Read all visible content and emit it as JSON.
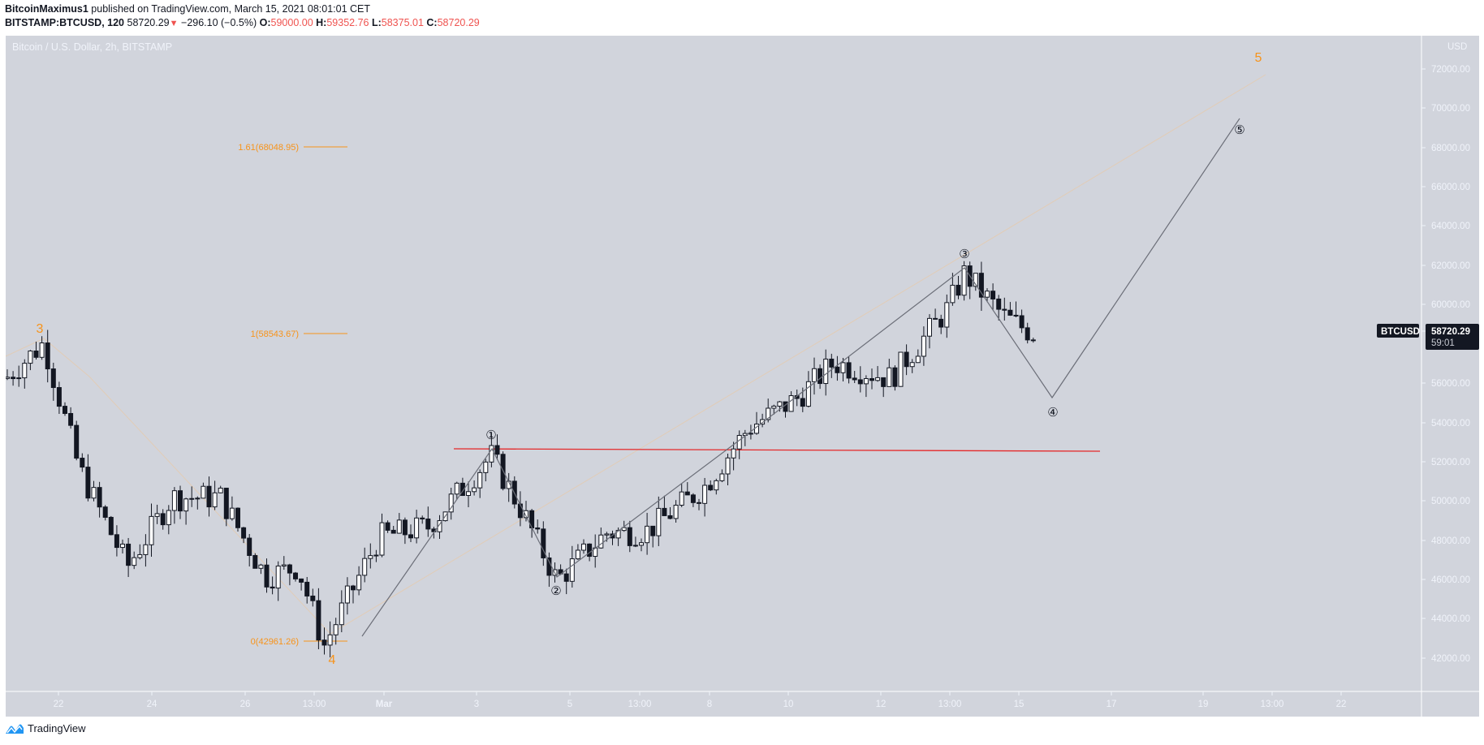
{
  "header": {
    "author": "BitcoinMaximus1",
    "published_text": "published on TradingView.com, March 15, 2021 08:01:01 CET",
    "symbol_interval": "BITSTAMP:BTCUSD, 120",
    "last_price": "58720.29",
    "change_direction": "down",
    "change_icon": "down-triangle-icon",
    "change": "−296.10 (−0.5%)",
    "open_label": "O:",
    "open": "59000.00",
    "high_label": "H:",
    "high": "59352.76",
    "low_label": "L:",
    "low": "58375.01",
    "close_label": "C:",
    "close": "58720.29"
  },
  "chart_title": "Bitcoin / U.S. Dollar, 2h, BITSTAMP",
  "price_axis": {
    "currency": "USD",
    "ticks": [
      "72000.00",
      "70000.00",
      "68000.00",
      "66000.00",
      "64000.00",
      "62000.00",
      "60000.00",
      "58000.00",
      "56000.00",
      "54000.00",
      "52000.00",
      "50000.00",
      "48000.00",
      "46000.00",
      "44000.00",
      "42000.00"
    ],
    "symbol_tag": "BTCUSD",
    "price_tag": "58720.29",
    "countdown": "59:01"
  },
  "time_axis": {
    "ticks": [
      "22",
      "24",
      "26",
      "13:00",
      "Mar",
      "3",
      "5",
      "13:00",
      "8",
      "10",
      "12",
      "13:00",
      "15",
      "17",
      "19",
      "13:00",
      "22"
    ]
  },
  "fib_levels": [
    {
      "label": "1.61(68048.95)",
      "value": 68048.95
    },
    {
      "label": "1(58543.67)",
      "value": 58543.67
    },
    {
      "label": "0(42961.26)",
      "value": 42961.26
    }
  ],
  "wave_labels": {
    "major": [
      "3",
      "4",
      "5"
    ],
    "minor": [
      "①",
      "②",
      "③",
      "④",
      "⑤"
    ]
  },
  "colors": {
    "background": "#d1d4dc",
    "axis_text": "#f0f3fa",
    "fib": "#f7931a",
    "resistance": "#e5292a",
    "path": "#6b6e78",
    "candle_up": "#ffffff",
    "candle_down": "#131722",
    "tag_bg": "#131722"
  },
  "footer": {
    "brand": "TradingView",
    "logo_icon": "tradingview-logo-icon"
  },
  "chart_data": {
    "type": "candlestick",
    "title": "Bitcoin / U.S. Dollar, 2h, BITSTAMP",
    "xlabel": "",
    "ylabel": "USD",
    "ylim": [
      40700,
      73800
    ],
    "x_ticks": [
      "22",
      "24",
      "26",
      "13:00",
      "Mar",
      "3",
      "5",
      "13:00",
      "8",
      "10",
      "12",
      "13:00",
      "15",
      "17",
      "19",
      "13:00",
      "22"
    ],
    "approx_close_path": [
      {
        "x": "Feb 21",
        "price": 56500
      },
      {
        "x": "Feb 21 (peak, wave 3)",
        "price": 58300
      },
      {
        "x": "Feb 22",
        "price": 52000
      },
      {
        "x": "Feb 23",
        "price": 47000
      },
      {
        "x": "Feb 24",
        "price": 50500
      },
      {
        "x": "Feb 25",
        "price": 50500
      },
      {
        "x": "Feb 26",
        "price": 46500
      },
      {
        "x": "Feb 27",
        "price": 47000
      },
      {
        "x": "Feb 28 (low, wave 4)",
        "price": 43000
      },
      {
        "x": "Mar 1",
        "price": 48500
      },
      {
        "x": "Mar 2",
        "price": 49000
      },
      {
        "x": "Mar 3 (wave ①)",
        "price": 52600
      },
      {
        "x": "Mar 4",
        "price": 49500
      },
      {
        "x": "Mar 5 (wave ②)",
        "price": 46300
      },
      {
        "x": "Mar 6",
        "price": 48700
      },
      {
        "x": "Mar 7",
        "price": 48800
      },
      {
        "x": "Mar 8",
        "price": 51000
      },
      {
        "x": "Mar 9",
        "price": 54000
      },
      {
        "x": "Mar 10",
        "price": 55500
      },
      {
        "x": "Mar 11",
        "price": 57300
      },
      {
        "x": "Mar 12",
        "price": 56500
      },
      {
        "x": "Mar 13",
        "price": 60000
      },
      {
        "x": "Mar 13 (wave ③)",
        "price": 61800
      },
      {
        "x": "Mar 14",
        "price": 59600
      },
      {
        "x": "Mar 15",
        "price": 58720.29
      }
    ],
    "annotations": {
      "fibonacci": [
        {
          "level": 1.61,
          "price": 68048.95
        },
        {
          "level": 1,
          "price": 58543.67
        },
        {
          "level": 0,
          "price": 42961.26
        }
      ],
      "resistance_line": {
        "price": 52600,
        "color": "#e5292a"
      },
      "projected_path": [
        {
          "label": "③",
          "price": 61800
        },
        {
          "label": "④",
          "price": 55300,
          "x": "Mar 16"
        },
        {
          "label": "⑤",
          "price": 68300,
          "x": "Mar 20"
        }
      ],
      "major_waves": [
        {
          "label": "3",
          "price": 58300
        },
        {
          "label": "4",
          "price": 43000
        },
        {
          "label": "5",
          "price": 72000
        }
      ]
    },
    "legend": "none",
    "grid": false
  }
}
